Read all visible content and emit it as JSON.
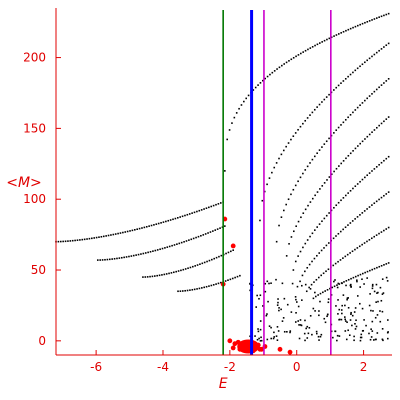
{
  "chart_data": {
    "type": "scatter",
    "title": "",
    "xlabel": "E",
    "ylabel": "<M>",
    "xlim": [
      -7.2,
      2.85
    ],
    "ylim": [
      -10,
      235
    ],
    "grid": false,
    "colors": {
      "axis": "#e00000",
      "points": "#000000",
      "highlight": "#ff0000",
      "vline_green": "#007700",
      "vline_blue": "#0000ff",
      "vline_magenta": "#cc00cc"
    },
    "xticks": [
      -6,
      -4,
      -2,
      0,
      2
    ],
    "yticks": [
      0,
      50,
      100,
      150,
      200
    ],
    "vlines": [
      {
        "x": -2.2,
        "color": "#007700",
        "width": "thin"
      },
      {
        "x": -1.35,
        "color": "#0000ff",
        "width": "thick"
      },
      {
        "x": -0.98,
        "color": "#cc00cc",
        "width": "thin"
      },
      {
        "x": 1.02,
        "color": "#cc00cc",
        "width": "thin"
      }
    ],
    "branches": [
      {
        "x0": -7.2,
        "x1": -2.2,
        "y0": 70,
        "y1": 98,
        "p": 1.6
      },
      {
        "x0": -5.95,
        "x1": -2.15,
        "y0": 57,
        "y1": 81,
        "p": 1.6
      },
      {
        "x0": -4.6,
        "x1": -1.9,
        "y0": 45,
        "y1": 64,
        "p": 1.6
      },
      {
        "x0": -3.55,
        "x1": -1.7,
        "y0": 35,
        "y1": 46,
        "p": 1.6
      },
      {
        "x0": -2.15,
        "x1": 2.75,
        "y0": 120,
        "y1": 231,
        "p": 0.38
      },
      {
        "x0": -1.1,
        "x1": 2.75,
        "y0": 85,
        "y1": 210,
        "p": 0.55
      },
      {
        "x0": -0.6,
        "x1": 2.75,
        "y0": 70,
        "y1": 185,
        "p": 0.6
      },
      {
        "x0": -0.3,
        "x1": 2.75,
        "y0": 60,
        "y1": 158,
        "p": 0.65
      },
      {
        "x0": -0.1,
        "x1": 2.75,
        "y0": 50,
        "y1": 130,
        "p": 0.7
      },
      {
        "x0": 0.1,
        "x1": 2.75,
        "y0": 42,
        "y1": 105,
        "p": 0.75
      },
      {
        "x0": 0.3,
        "x1": 2.75,
        "y0": 35,
        "y1": 80,
        "p": 0.8
      },
      {
        "x0": 0.5,
        "x1": 2.75,
        "y0": 30,
        "y1": 55,
        "p": 0.85
      }
    ],
    "noise_region": {
      "x0": -1.4,
      "x1": 2.75,
      "y0": 0,
      "y1": 45,
      "count": 220
    },
    "highlight_points": [
      [
        -2.15,
        86
      ],
      [
        -1.9,
        67
      ],
      [
        -2.2,
        40
      ],
      [
        -2.0,
        0
      ],
      [
        -1.85,
        -2
      ],
      [
        -1.75,
        -1
      ],
      [
        -1.65,
        -3
      ],
      [
        -1.55,
        -2
      ],
      [
        -1.45,
        -4
      ],
      [
        -1.35,
        -3
      ],
      [
        -1.25,
        -2
      ],
      [
        -1.15,
        -3
      ],
      [
        -1.05,
        -6
      ],
      [
        -0.95,
        -4
      ],
      [
        -1.9,
        -5
      ],
      [
        -1.7,
        -6
      ],
      [
        -1.5,
        -6
      ],
      [
        -1.3,
        -7
      ],
      [
        -1.1,
        -6
      ],
      [
        -0.5,
        -6
      ],
      [
        -0.2,
        -8
      ]
    ]
  }
}
